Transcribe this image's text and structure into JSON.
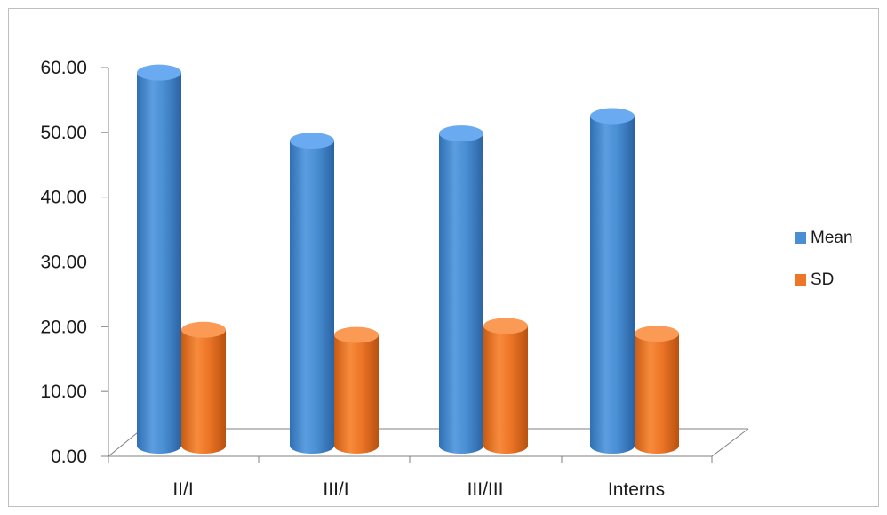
{
  "chart_data": {
    "type": "bar",
    "categories": [
      "II/I",
      "III/I",
      "III/III",
      "Interns"
    ],
    "series": [
      {
        "name": "Mean",
        "values": [
          59.5,
          49.0,
          50.1,
          52.8
        ],
        "color": "#4a8fd4"
      },
      {
        "name": "SD",
        "values": [
          19.8,
          19.0,
          20.4,
          19.2
        ],
        "color": "#ee7628"
      }
    ],
    "ylim": [
      0,
      60
    ],
    "yticks": [
      "0.00",
      "10.00",
      "20.00",
      "30.00",
      "40.00",
      "50.00",
      "60.00"
    ],
    "title": "",
    "xlabel": "",
    "ylabel": "",
    "legend": "right",
    "grid": false,
    "style": "3d-cylinder"
  }
}
